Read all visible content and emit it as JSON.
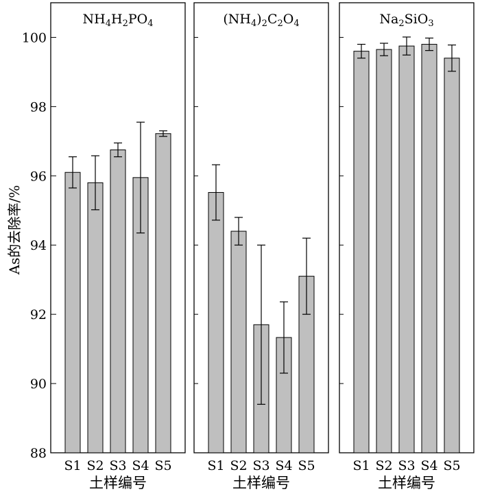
{
  "chart_data": {
    "type": "bar",
    "ylabel": "As的去除率/%",
    "ylim": [
      88,
      101
    ],
    "yticks": [
      "88",
      "90",
      "92",
      "94",
      "96",
      "98",
      "100"
    ],
    "categories": [
      "S1",
      "S2",
      "S3",
      "S4",
      "S5"
    ],
    "grid": false,
    "bar_color": "#bfbfbf",
    "panels": [
      {
        "title": "NH4H2PO4",
        "xlabel": "土样编号",
        "values": [
          96.1,
          95.8,
          96.75,
          95.95,
          97.22
        ],
        "errors": [
          0.45,
          0.78,
          0.2,
          1.6,
          0.08
        ]
      },
      {
        "title": "(NH4)2C2O4",
        "xlabel": "土样编号",
        "values": [
          95.52,
          94.4,
          91.7,
          91.33,
          93.1
        ],
        "errors": [
          0.8,
          0.4,
          2.3,
          1.03,
          1.1
        ]
      },
      {
        "title": "Na2SiO3",
        "xlabel": "土样编号",
        "values": [
          99.6,
          99.65,
          99.75,
          99.8,
          99.4
        ],
        "errors": [
          0.2,
          0.18,
          0.26,
          0.18,
          0.38
        ]
      }
    ]
  }
}
